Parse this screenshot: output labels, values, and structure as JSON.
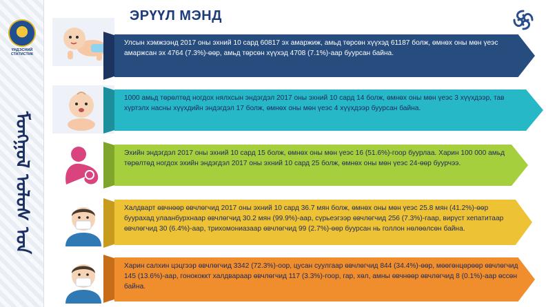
{
  "sidebar": {
    "logo_caption_line1": "ҮНДЭСНИЙ",
    "logo_caption_line2": "СТАТИСТИК",
    "vertical_text": "ᠮᠣᠩᠭᠣᠯ ᠤᠯᠤᠰ ᠤᠨ"
  },
  "header": {
    "title": "ЭРҮҮЛ МЭНД"
  },
  "colors": {
    "banner1": "#274c7e",
    "banner2": "#27b8c8",
    "banner3": "#a6cf3d",
    "banner4": "#edc234",
    "banner5": "#f08d2c",
    "title": "#1f3c7a"
  },
  "sections": [
    {
      "icon": "crawling-baby-icon",
      "text": "Улсын хэмжээнд 2017 оны эхний 10 сард 60817 эх амаржиж, амьд төрсөн хүүхэд 61187 болж, өмнөх оны мөн үеэс амаржсан эх 4764 (7.3%)-өөр, амьд төрсөн хүүхэд 4708 (7.1%)-аар буурсан байна."
    },
    {
      "icon": "sitting-baby-icon",
      "text": "1000 амьд төрөлтөд ногдох нялхсын эндэгдэл 2017 оны эхний 10 сард 14  болж, өмнөх оны мөн үеэс 3 хүүхдээр, тав хүртэлх насны хүүхдийн эндэгдэл 17 болж, өмнөх оны мөн үеэс 4 хүүхдээр буурсан байна."
    },
    {
      "icon": "mother-and-child-icon",
      "text": "Эхийн эндэгдэл 2017 оны эхний 10 сард 15 болж, өмнөх оны мөн үеэс 16 (51.6%)-гоор буурлаа. Харин 100 000 амьд төрөлтөд ногдох эхийн эндэгдэл 2017 оны эхний 10 сард 25 болж, өмнөх оны мөн үеэс 24-өөр буурчээ."
    },
    {
      "icon": "masked-patient-icon",
      "text": "Халдварт өвчнөөр өвчлөгчид 2017 оны эхний 10 сард 36.7 мян болж, өмнөх оны мөн үеэс 25.8 мян (41.2%)-өөр буурахад улаанбурхнаар өвчлөгчид 30.2 мян (99.9%)-аар, сүрьеэгээр өвчлөгчид 256    (7.3%)-гаар, вирүст хепатитаар өвчлөгчид 30 (6.4%)-аар, трихомониазаар өвчлөгчид 99 (2.7%)-өөр буурсан нь голлон нөлөөлсөн байна."
    },
    {
      "icon": "masked-patient-icon",
      "text": "Харин салхин цэцгээр өвчлөгчид 3342 (72.3%)-оор, цусан суулгаар өвчлөгчид 844 (34.4%)-өөр, мөөгөнцөрөөр өвчлөгчид    145 (13.6%)-аар, гонококкт халдвараар өвчлөгчид 117 (3.3%)-гоор, гар, хөл,  амны өвчнөөр өвчлөгчид 8 (0.1%)-аар өссөн байна."
    }
  ]
}
